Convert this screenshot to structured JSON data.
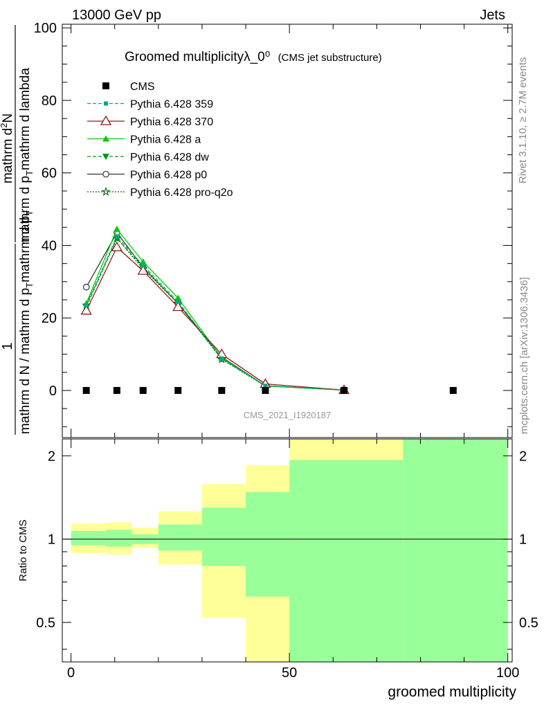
{
  "header": {
    "left": "13000 GeV pp",
    "right": "Jets"
  },
  "side": {
    "rivet": "Rivet 3.1.10, ≥ 2.7M events",
    "mcplots": "mcplots.cern.ch [arXiv:1306.3436]"
  },
  "title": {
    "main": "Groomed multiplicityλ_0⁰",
    "sub": "(CMS jet substructure)"
  },
  "watermark": "CMS_2021_I1920187",
  "chart_data": [
    {
      "type": "line",
      "ylabel": "1 / (mathrm d N / mathrm d p_T mathrm d p_T) · mathrm d²N / (mathrm d p_T mathrm d lambda)",
      "ylabel_parts": {
        "num": "1",
        "den": "mathrm d N / mathrm d p",
        "den_sub": "T",
        "den_tail": "mathrm d p",
        "den_tail_sub": "T",
        "right_num": "mathrm d",
        "right_num_sup": "2",
        "right_num_tail": "N",
        "right_den": "mathrm d p",
        "right_den_sub": "T",
        "right_den_tail": "mathrm d lambda"
      },
      "xlim": [
        -2,
        101
      ],
      "ylim": [
        -13,
        101
      ],
      "yticks": [
        0,
        20,
        40,
        60,
        80,
        100
      ],
      "legend_position": "top-left",
      "series": [
        {
          "name": "CMS",
          "color": "#000000",
          "marker": "square",
          "line": "none",
          "x": [
            3.5,
            10.5,
            16.5,
            24.5,
            34.5,
            44.5,
            62.5,
            87.5
          ],
          "values": [
            0,
            0,
            0,
            0,
            0,
            0,
            0,
            0
          ]
        },
        {
          "name": "Pythia 6.428 359",
          "color": "#00aa88",
          "marker": "small-square",
          "line": "dashed",
          "x": [
            3.5,
            10.5,
            16.5,
            24.5,
            34.5,
            44.5,
            62.5
          ],
          "values": [
            23.5,
            42.5,
            34.5,
            24.5,
            8.8,
            1.3,
            0.1
          ]
        },
        {
          "name": "Pythia 6.428 370",
          "color": "#8b1a1a",
          "marker": "open-triangle",
          "line": "solid",
          "x": [
            3.5,
            10.5,
            16.5,
            24.5,
            34.5,
            44.5,
            62.5
          ],
          "values": [
            22.0,
            39.5,
            33.0,
            23.0,
            10.0,
            1.8,
            0.1
          ]
        },
        {
          "name": "Pythia 6.428 a",
          "color": "#00cc00",
          "marker": "triangle",
          "line": "solid",
          "x": [
            3.5,
            10.5,
            16.5,
            24.5,
            34.5,
            44.5,
            62.5
          ],
          "values": [
            24.0,
            44.5,
            35.5,
            25.5,
            9.0,
            1.2,
            0.1
          ]
        },
        {
          "name": "Pythia 6.428 dw",
          "color": "#009900",
          "marker": "down-triangle",
          "line": "dashed",
          "x": [
            3.5,
            10.5,
            16.5,
            24.5,
            34.5,
            44.5,
            62.5
          ],
          "values": [
            23.0,
            42.0,
            34.0,
            24.0,
            8.7,
            1.3,
            0.1
          ]
        },
        {
          "name": "Pythia 6.428 p0",
          "color": "#333333",
          "marker": "open-circle",
          "line": "solid",
          "x": [
            3.5,
            10.5,
            16.5,
            24.5,
            34.5,
            44.5,
            62.5
          ],
          "values": [
            28.5,
            43.5,
            34.0,
            24.0,
            9.2,
            1.3,
            0.1
          ]
        },
        {
          "name": "Pythia 6.428 pro-q2o",
          "color": "#006600",
          "marker": "star",
          "line": "dotted",
          "x": [
            3.5,
            10.5,
            16.5,
            24.5,
            34.5,
            44.5,
            62.5
          ],
          "values": [
            23.5,
            42.0,
            33.5,
            24.0,
            8.6,
            1.2,
            0.1
          ]
        }
      ]
    },
    {
      "type": "area",
      "xlabel": "groomed multiplicity",
      "ylabel": "Ratio to CMS",
      "xlim": [
        -2,
        101
      ],
      "xticks": [
        0,
        50,
        100
      ],
      "ylim": [
        0.36,
        2.3
      ],
      "yticks": [
        0.5,
        1,
        2
      ],
      "reference_line": 1,
      "bins": [
        {
          "lo": 0,
          "hi": 8,
          "yellow": [
            0.89,
            1.14
          ],
          "green": [
            0.95,
            1.07
          ]
        },
        {
          "lo": 8,
          "hi": 14,
          "yellow": [
            0.88,
            1.15
          ],
          "green": [
            0.94,
            1.08
          ]
        },
        {
          "lo": 14,
          "hi": 20,
          "yellow": [
            0.93,
            1.1
          ],
          "green": [
            0.96,
            1.04
          ]
        },
        {
          "lo": 20,
          "hi": 30,
          "yellow": [
            0.81,
            1.26
          ],
          "green": [
            0.91,
            1.13
          ]
        },
        {
          "lo": 30,
          "hi": 40,
          "yellow": [
            0.52,
            1.58
          ],
          "green": [
            0.8,
            1.3
          ]
        },
        {
          "lo": 40,
          "hi": 50,
          "yellow": [
            0.36,
            1.85
          ],
          "green": [
            0.62,
            1.48
          ]
        },
        {
          "lo": 50,
          "hi": 76,
          "yellow": [
            0.36,
            2.3
          ],
          "green": [
            0.36,
            1.93
          ]
        },
        {
          "lo": 76,
          "hi": 100,
          "yellow": [
            0.36,
            2.3
          ],
          "green": [
            0.36,
            2.3
          ]
        }
      ],
      "colors": {
        "yellow": "#ffff99",
        "green": "#99ff99"
      }
    }
  ]
}
